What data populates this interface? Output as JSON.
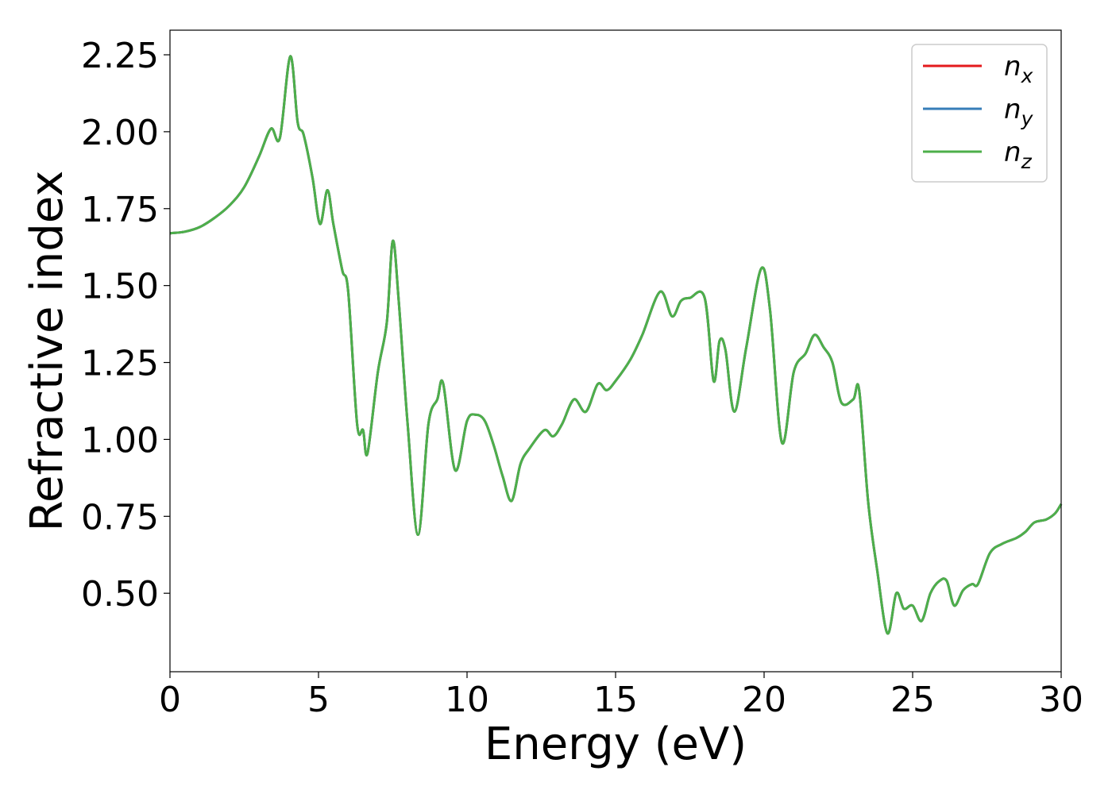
{
  "chart_data": {
    "type": "line",
    "xlabel": "Energy (eV)",
    "ylabel": "Refractive index",
    "xlim": [
      0,
      30
    ],
    "ylim": [
      0.245,
      2.33
    ],
    "xticks": [
      0,
      5,
      10,
      15,
      20,
      25,
      30
    ],
    "xtick_labels": [
      "0",
      "5",
      "10",
      "15",
      "20",
      "25",
      "30"
    ],
    "yticks": [
      0.5,
      0.75,
      1.0,
      1.25,
      1.5,
      1.75,
      2.0,
      2.25
    ],
    "ytick_labels": [
      "0.50",
      "0.75",
      "1.00",
      "1.25",
      "1.50",
      "1.75",
      "2.00",
      "2.25"
    ],
    "grid": false,
    "legend_position": "top-right",
    "series": [
      {
        "name": "n_x",
        "label_base": "n",
        "label_sub": "x",
        "color": "#e41a1c"
      },
      {
        "name": "n_y",
        "label_base": "n",
        "label_sub": "y",
        "color": "#377eb8"
      },
      {
        "name": "n_z",
        "label_base": "n",
        "label_sub": "z",
        "color": "#4daf4a"
      }
    ],
    "x": [
      0,
      0.5,
      1.0,
      1.5,
      2.0,
      2.5,
      3.0,
      3.4,
      3.7,
      4.05,
      4.3,
      4.5,
      4.8,
      5.05,
      5.3,
      5.5,
      5.8,
      6.0,
      6.3,
      6.5,
      6.65,
      7.0,
      7.3,
      7.5,
      7.7,
      8.0,
      8.35,
      8.7,
      9.0,
      9.2,
      9.6,
      10.0,
      10.3,
      10.6,
      10.9,
      11.2,
      11.5,
      11.8,
      12.1,
      12.6,
      12.9,
      13.2,
      13.6,
      14.0,
      14.4,
      14.7,
      15.0,
      15.5,
      15.9,
      16.5,
      16.9,
      17.2,
      17.5,
      18.0,
      18.3,
      18.5,
      18.7,
      19.0,
      19.4,
      19.9,
      20.2,
      20.6,
      21.0,
      21.4,
      21.7,
      22.0,
      22.3,
      22.6,
      23.0,
      23.2,
      23.5,
      23.8,
      24.15,
      24.45,
      24.7,
      25.0,
      25.3,
      25.6,
      25.9,
      26.15,
      26.4,
      26.7,
      27.0,
      27.2,
      27.6,
      28.0,
      28.5,
      28.8,
      29.1,
      29.5,
      29.8,
      30.0
    ],
    "values": [
      1.67,
      1.675,
      1.69,
      1.72,
      1.76,
      1.82,
      1.92,
      2.01,
      1.98,
      2.245,
      2.03,
      1.99,
      1.85,
      1.7,
      1.81,
      1.7,
      1.55,
      1.48,
      1.05,
      1.03,
      0.955,
      1.22,
      1.38,
      1.645,
      1.45,
      1.05,
      0.69,
      1.05,
      1.13,
      1.18,
      0.9,
      1.06,
      1.08,
      1.06,
      0.98,
      0.88,
      0.8,
      0.92,
      0.97,
      1.03,
      1.01,
      1.05,
      1.13,
      1.09,
      1.18,
      1.16,
      1.19,
      1.26,
      1.34,
      1.48,
      1.4,
      1.45,
      1.46,
      1.46,
      1.19,
      1.32,
      1.29,
      1.09,
      1.3,
      1.555,
      1.42,
      0.99,
      1.22,
      1.28,
      1.34,
      1.3,
      1.25,
      1.12,
      1.13,
      1.16,
      0.8,
      0.58,
      0.37,
      0.5,
      0.45,
      0.46,
      0.41,
      0.5,
      0.54,
      0.54,
      0.46,
      0.51,
      0.53,
      0.53,
      0.63,
      0.66,
      0.68,
      0.7,
      0.73,
      0.74,
      0.76,
      0.79
    ]
  }
}
